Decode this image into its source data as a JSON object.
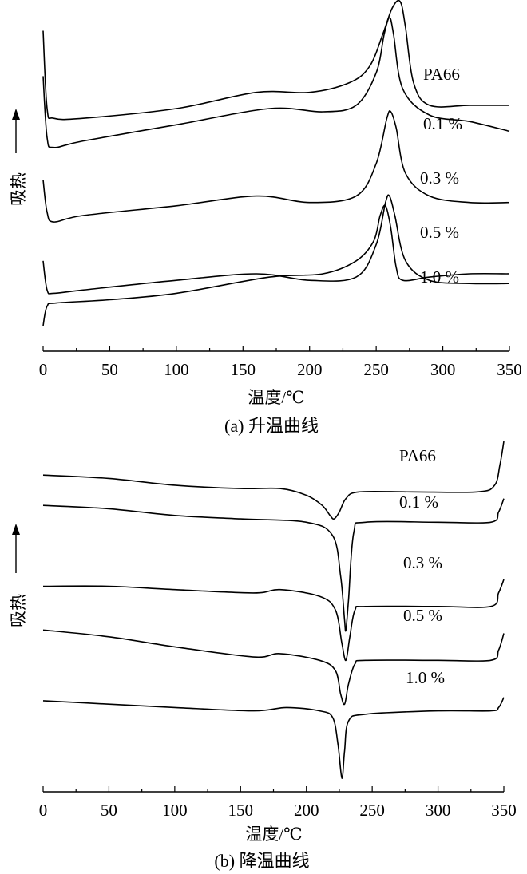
{
  "chart_data": [
    {
      "type": "line",
      "panel": "a",
      "caption": "(a) 升温曲线",
      "xlabel": "温度/℃",
      "ylabel": "吸热",
      "xlim": [
        0,
        350
      ],
      "xticks": [
        "0",
        "50",
        "100",
        "150",
        "200",
        "250",
        "300",
        "350"
      ],
      "y_axis_visible": false,
      "series": [
        {
          "name": "PA66",
          "peak_x": 268,
          "points": [
            [
              0,
              0.09
            ],
            [
              3,
              0.33
            ],
            [
              8,
              0.36
            ],
            [
              30,
              0.36
            ],
            [
              100,
              0.33
            ],
            [
              160,
              0.28
            ],
            [
              200,
              0.28
            ],
            [
              230,
              0.25
            ],
            [
              245,
              0.2
            ],
            [
              255,
              0.1
            ],
            [
              262,
              0.02
            ],
            [
              268,
              0.0
            ],
            [
              272,
              0.08
            ],
            [
              278,
              0.25
            ],
            [
              290,
              0.32
            ],
            [
              320,
              0.32
            ],
            [
              350,
              0.32
            ]
          ]
        },
        {
          "name": "0.1 %",
          "peak_x": 260,
          "points": [
            [
              0,
              0.23
            ],
            [
              3,
              0.42
            ],
            [
              8,
              0.45
            ],
            [
              30,
              0.43
            ],
            [
              100,
              0.38
            ],
            [
              170,
              0.33
            ],
            [
              210,
              0.34
            ],
            [
              235,
              0.32
            ],
            [
              250,
              0.22
            ],
            [
              256,
              0.1
            ],
            [
              260,
              0.05
            ],
            [
              263,
              0.1
            ],
            [
              270,
              0.27
            ],
            [
              290,
              0.35
            ],
            [
              320,
              0.37
            ],
            [
              350,
              0.4
            ]
          ]
        },
        {
          "name": "0.3 %",
          "peak_x": 261,
          "points": [
            [
              0,
              0.55
            ],
            [
              3,
              0.65
            ],
            [
              8,
              0.68
            ],
            [
              30,
              0.66
            ],
            [
              100,
              0.63
            ],
            [
              160,
              0.6
            ],
            [
              200,
              0.62
            ],
            [
              235,
              0.6
            ],
            [
              250,
              0.5
            ],
            [
              258,
              0.36
            ],
            [
              261,
              0.34
            ],
            [
              265,
              0.39
            ],
            [
              272,
              0.53
            ],
            [
              290,
              0.6
            ],
            [
              320,
              0.62
            ],
            [
              350,
              0.62
            ]
          ]
        },
        {
          "name": "0.5 %",
          "peak_x": 260,
          "points": [
            [
              0,
              0.8
            ],
            [
              3,
              0.89
            ],
            [
              8,
              0.9
            ],
            [
              30,
              0.89
            ],
            [
              100,
              0.86
            ],
            [
              160,
              0.84
            ],
            [
              200,
              0.86
            ],
            [
              235,
              0.85
            ],
            [
              250,
              0.75
            ],
            [
              257,
              0.62
            ],
            [
              260,
              0.6
            ],
            [
              264,
              0.66
            ],
            [
              272,
              0.8
            ],
            [
              290,
              0.86
            ],
            [
              320,
              0.87
            ],
            [
              350,
              0.87
            ]
          ]
        },
        {
          "name": "1.0 %",
          "peak_x": 257,
          "points": [
            [
              0,
              1.0
            ],
            [
              3,
              0.94
            ],
            [
              10,
              0.93
            ],
            [
              50,
              0.92
            ],
            [
              100,
              0.9
            ],
            [
              170,
              0.85
            ],
            [
              210,
              0.84
            ],
            [
              235,
              0.8
            ],
            [
              248,
              0.74
            ],
            [
              253,
              0.66
            ],
            [
              257,
              0.63
            ],
            [
              261,
              0.7
            ],
            [
              265,
              0.82
            ],
            [
              270,
              0.86
            ],
            [
              290,
              0.85
            ],
            [
              320,
              0.84
            ],
            [
              350,
              0.84
            ]
          ]
        }
      ]
    },
    {
      "type": "line",
      "panel": "b",
      "caption": "(b) 降温曲线",
      "xlabel": "温度/℃",
      "ylabel": "吸热",
      "xlim": [
        0,
        350
      ],
      "xticks": [
        "0",
        "50",
        "100",
        "150",
        "200",
        "250",
        "300",
        "350"
      ],
      "y_axis_visible": false,
      "series": [
        {
          "name": "PA66",
          "peak_x": 221,
          "points": [
            [
              0,
              0.1
            ],
            [
              50,
              0.11
            ],
            [
              100,
              0.13
            ],
            [
              150,
              0.14
            ],
            [
              180,
              0.14
            ],
            [
              200,
              0.16
            ],
            [
              212,
              0.19
            ],
            [
              218,
              0.22
            ],
            [
              221,
              0.23
            ],
            [
              225,
              0.21
            ],
            [
              230,
              0.17
            ],
            [
              240,
              0.15
            ],
            [
              280,
              0.15
            ],
            [
              330,
              0.15
            ],
            [
              343,
              0.13
            ],
            [
              347,
              0.07
            ],
            [
              350,
              0.0
            ]
          ]
        },
        {
          "name": "0.1 %",
          "peak_x": 230,
          "points": [
            [
              0,
              0.19
            ],
            [
              50,
              0.2
            ],
            [
              100,
              0.22
            ],
            [
              150,
              0.23
            ],
            [
              200,
              0.24
            ],
            [
              220,
              0.28
            ],
            [
              226,
              0.4
            ],
            [
              229,
              0.53
            ],
            [
              230,
              0.56
            ],
            [
              232,
              0.47
            ],
            [
              236,
              0.27
            ],
            [
              245,
              0.24
            ],
            [
              300,
              0.24
            ],
            [
              340,
              0.24
            ],
            [
              346,
              0.21
            ],
            [
              350,
              0.17
            ]
          ]
        },
        {
          "name": "0.3 %",
          "peak_x": 230,
          "points": [
            [
              0,
              0.43
            ],
            [
              50,
              0.43
            ],
            [
              100,
              0.44
            ],
            [
              160,
              0.45
            ],
            [
              180,
              0.44
            ],
            [
              210,
              0.46
            ],
            [
              222,
              0.5
            ],
            [
              227,
              0.6
            ],
            [
              230,
              0.65
            ],
            [
              233,
              0.58
            ],
            [
              237,
              0.5
            ],
            [
              245,
              0.49
            ],
            [
              300,
              0.49
            ],
            [
              340,
              0.49
            ],
            [
              346,
              0.45
            ],
            [
              350,
              0.41
            ]
          ]
        },
        {
          "name": "0.5 %",
          "peak_x": 229,
          "points": [
            [
              0,
              0.56
            ],
            [
              50,
              0.58
            ],
            [
              100,
              0.61
            ],
            [
              160,
              0.64
            ],
            [
              180,
              0.63
            ],
            [
              210,
              0.65
            ],
            [
              222,
              0.68
            ],
            [
              226,
              0.75
            ],
            [
              229,
              0.78
            ],
            [
              232,
              0.72
            ],
            [
              237,
              0.66
            ],
            [
              245,
              0.65
            ],
            [
              300,
              0.65
            ],
            [
              340,
              0.65
            ],
            [
              346,
              0.62
            ],
            [
              350,
              0.57
            ]
          ]
        },
        {
          "name": "1.0 %",
          "peak_x": 227,
          "points": [
            [
              0,
              0.77
            ],
            [
              50,
              0.78
            ],
            [
              100,
              0.79
            ],
            [
              160,
              0.8
            ],
            [
              185,
              0.79
            ],
            [
              210,
              0.8
            ],
            [
              220,
              0.82
            ],
            [
              224,
              0.9
            ],
            [
              227,
              1.0
            ],
            [
              229,
              0.92
            ],
            [
              232,
              0.83
            ],
            [
              245,
              0.81
            ],
            [
              300,
              0.8
            ],
            [
              340,
              0.8
            ],
            [
              346,
              0.79
            ],
            [
              350,
              0.76
            ]
          ]
        }
      ]
    }
  ]
}
